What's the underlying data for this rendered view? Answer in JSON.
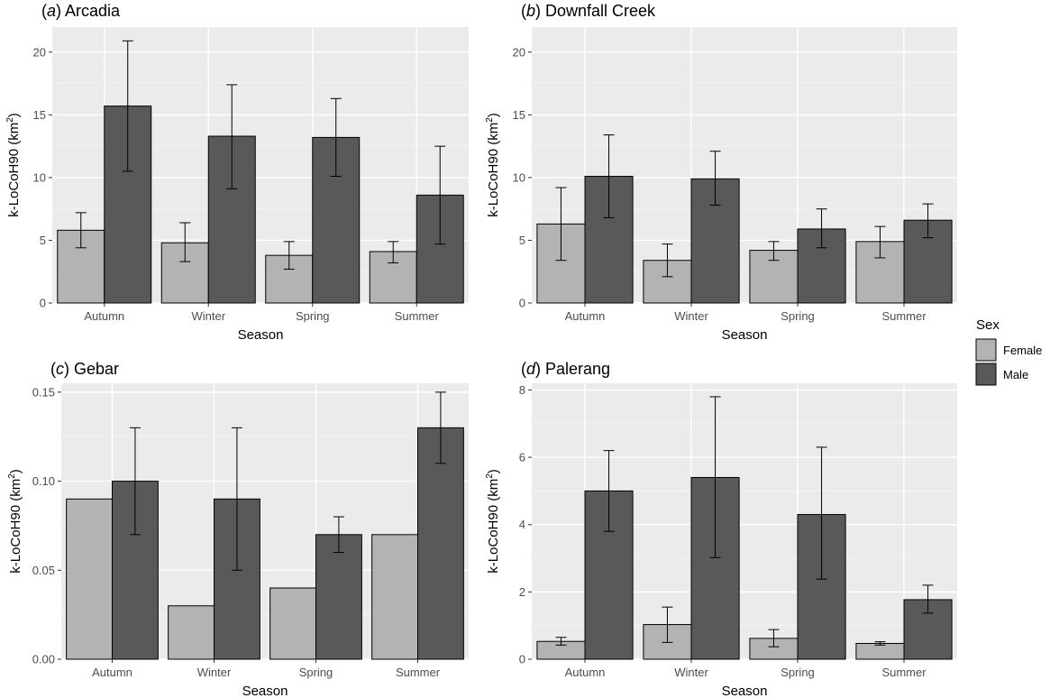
{
  "legend": {
    "title": "Sex",
    "entries": [
      {
        "label": "Female",
        "color": "#b3b3b3"
      },
      {
        "label": "Male",
        "color": "#595959"
      }
    ],
    "placement": "right"
  },
  "chart_data": [
    {
      "type": "bar",
      "panel_label": "a",
      "title": "Arcadia",
      "xlabel": "Season",
      "ylabel": "k-LoCoH90 (km²)",
      "ylim": [
        0,
        22
      ],
      "yticks": [
        0,
        5,
        10,
        15,
        20
      ],
      "ytick_labels": [
        "0",
        "5",
        "10",
        "15",
        "20"
      ],
      "categories": [
        "Autumn",
        "Winter",
        "Spring",
        "Summer"
      ],
      "grid": true,
      "series": [
        {
          "name": "Female",
          "values": [
            5.8,
            4.8,
            3.8,
            4.1
          ],
          "err_low": [
            4.4,
            3.3,
            2.7,
            3.2
          ],
          "err_high": [
            7.2,
            6.4,
            4.9,
            4.9
          ]
        },
        {
          "name": "Male",
          "values": [
            15.7,
            13.3,
            13.2,
            8.6
          ],
          "err_low": [
            10.5,
            9.1,
            10.1,
            4.7
          ],
          "err_high": [
            20.9,
            17.4,
            16.3,
            12.5
          ]
        }
      ]
    },
    {
      "type": "bar",
      "panel_label": "b",
      "title": "Downfall Creek",
      "xlabel": "Season",
      "ylabel": "k-LoCoH90 (km²)",
      "ylim": [
        0,
        22
      ],
      "yticks": [
        0,
        5,
        10,
        15,
        20
      ],
      "ytick_labels": [
        "0",
        "5",
        "10",
        "15",
        "20"
      ],
      "categories": [
        "Autumn",
        "Winter",
        "Spring",
        "Summer"
      ],
      "grid": true,
      "series": [
        {
          "name": "Female",
          "values": [
            6.3,
            3.4,
            4.2,
            4.9
          ],
          "err_low": [
            3.4,
            2.1,
            3.4,
            3.6
          ],
          "err_high": [
            9.2,
            4.7,
            4.9,
            6.1
          ]
        },
        {
          "name": "Male",
          "values": [
            10.1,
            9.9,
            5.9,
            6.6
          ],
          "err_low": [
            6.8,
            7.8,
            4.4,
            5.2
          ],
          "err_high": [
            13.4,
            12.1,
            7.5,
            7.9
          ]
        }
      ]
    },
    {
      "type": "bar",
      "panel_label": "c",
      "title": "Gebar",
      "xlabel": "Season",
      "ylabel": "k-LoCoH90 (km²)",
      "ylim": [
        0,
        0.155
      ],
      "yticks": [
        0,
        0.05,
        0.1,
        0.15
      ],
      "ytick_labels": [
        "0.00",
        "0.05",
        "0.10",
        "0.15"
      ],
      "categories": [
        "Autumn",
        "Winter",
        "Spring",
        "Summer"
      ],
      "grid": true,
      "series": [
        {
          "name": "Female",
          "values": [
            0.09,
            0.03,
            0.04,
            0.07
          ],
          "err_low": [
            null,
            null,
            null,
            null
          ],
          "err_high": [
            null,
            null,
            null,
            null
          ]
        },
        {
          "name": "Male",
          "values": [
            0.1,
            0.09,
            0.07,
            0.13
          ],
          "err_low": [
            0.07,
            0.05,
            0.06,
            0.11
          ],
          "err_high": [
            0.13,
            0.13,
            0.08,
            0.15
          ]
        }
      ]
    },
    {
      "type": "bar",
      "panel_label": "d",
      "title": "Palerang",
      "xlabel": "Season",
      "ylabel": "k-LoCoH90 (km²)",
      "ylim": [
        0,
        8.2
      ],
      "yticks": [
        0,
        2,
        4,
        6,
        8
      ],
      "ytick_labels": [
        "0",
        "2",
        "4",
        "6",
        "8"
      ],
      "categories": [
        "Autumn",
        "Winter",
        "Spring",
        "Summer"
      ],
      "grid": true,
      "series": [
        {
          "name": "Female",
          "values": [
            0.53,
            1.03,
            0.62,
            0.47
          ],
          "err_low": [
            0.42,
            0.5,
            0.37,
            0.42
          ],
          "err_high": [
            0.65,
            1.55,
            0.88,
            0.52
          ]
        },
        {
          "name": "Male",
          "values": [
            5.0,
            5.4,
            4.3,
            1.77
          ],
          "err_low": [
            3.8,
            3.02,
            2.38,
            1.37
          ],
          "err_high": [
            6.2,
            7.8,
            6.3,
            2.2
          ]
        }
      ]
    }
  ]
}
